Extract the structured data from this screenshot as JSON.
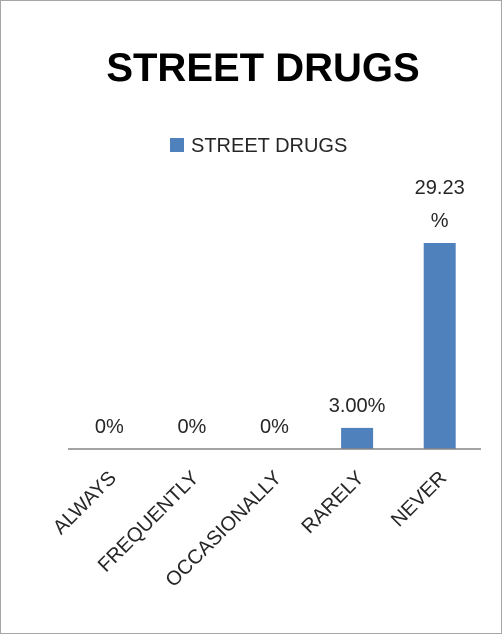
{
  "chart_data": {
    "type": "bar",
    "title": "STREET DRUGS",
    "categories": [
      "ALWAYS",
      "FREQUENTLY",
      "OCCASIONALLY",
      "RARELY",
      "NEVER"
    ],
    "series": [
      {
        "name": "STREET DRUGS",
        "values": [
          0,
          0,
          0,
          3.0,
          29.23
        ],
        "data_labels": [
          "0%",
          "0%",
          "0%",
          "3.00%",
          "29.23 %"
        ],
        "color": "#4f81bd"
      }
    ],
    "xlabel": "",
    "ylabel": "",
    "y_axis_visible": false,
    "grid": false,
    "legend_position": "top"
  }
}
